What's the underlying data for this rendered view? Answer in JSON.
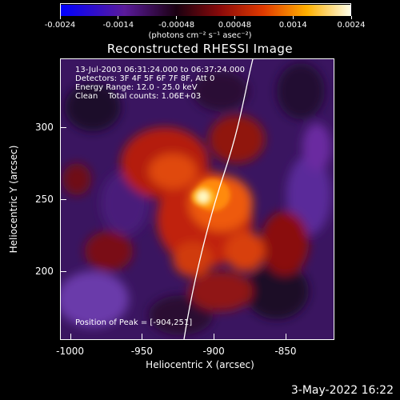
{
  "colorbar": {
    "tick_labels": [
      "-0.0024",
      "-0.0014",
      "-0.00048",
      "0.00048",
      "0.0014",
      "0.0024"
    ],
    "units": "(photons cm⁻² s⁻¹ asec⁻²)",
    "gradient_colors": [
      "#0000ff",
      "#4b0082",
      "#000000",
      "#8b0000",
      "#ff4500",
      "#ffcc00",
      "#ffffff"
    ]
  },
  "plot": {
    "title": "Reconstructed RHESSI Image",
    "info_lines": [
      "13-Jul-2003 06:31:24.000 to 06:37:24.000",
      "Detectors: 3F 4F 5F 6F 7F 8F, Att 0",
      "Energy Range: 12.0 - 25.0 keV",
      "Clean    Total counts: 1.06E+03"
    ],
    "peak_text": "Position of Peak = [-904,251]",
    "xlabel": "Heliocentric X (arcsec)",
    "ylabel": "Heliocentric Y (arcsec)",
    "x_ticks": [
      "-1000",
      "-950",
      "-900",
      "-850"
    ],
    "y_ticks": [
      "300",
      "250",
      "200"
    ],
    "x_range": [
      -1007,
      -816
    ],
    "y_range": [
      152,
      348
    ],
    "x_tick_values": [
      -1000,
      -950,
      -900,
      -850
    ],
    "y_tick_values": [
      300,
      250,
      200
    ],
    "peak": {
      "x": -904,
      "y": 251
    }
  },
  "footer": {
    "date": "3-May-2022 16:22"
  }
}
